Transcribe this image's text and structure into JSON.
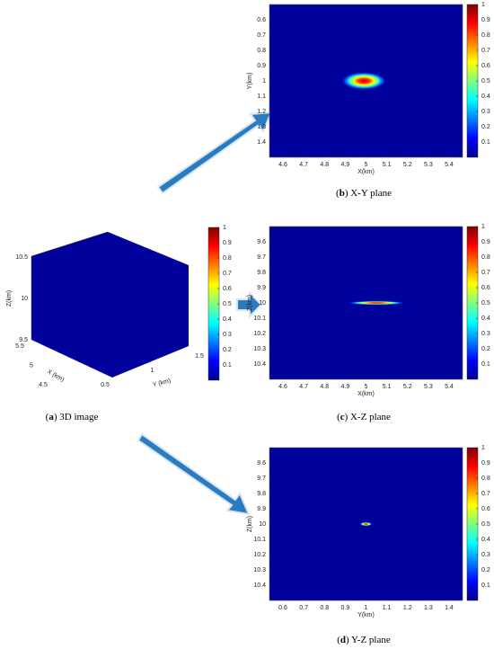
{
  "chart_data": [
    {
      "type": "cube3d",
      "xlabel": "X (km)",
      "ylabel": "Y (km)",
      "zlabel": "Z(km)",
      "xlim": [
        4.5,
        5.5
      ],
      "xticks": [
        4.5,
        5,
        5.5
      ],
      "ylim": [
        0.5,
        1.5
      ],
      "yticks": [
        0.5,
        1,
        1.5
      ],
      "zlim": [
        9.5,
        10.5
      ],
      "zticks": [
        9.5,
        10,
        10.5
      ],
      "color": "#00009a",
      "colormap": "jet",
      "clim": [
        0,
        1
      ],
      "cticks": [
        0.1,
        0.2,
        0.3,
        0.4,
        0.5,
        0.6,
        0.7,
        0.8,
        0.9,
        1
      ],
      "caption": [
        "(",
        "a",
        ") 3D image"
      ]
    },
    {
      "type": "heatmap",
      "xlabel": "X(km)",
      "ylabel": "Y(km)",
      "xlim": [
        4.535,
        5.465
      ],
      "xticks": [
        4.6,
        4.7,
        4.8,
        4.9,
        5,
        5.1,
        5.2,
        5.3,
        5.4
      ],
      "ylim": [
        0.5,
        1.5
      ],
      "yticks": [
        0.6,
        0.7,
        0.8,
        0.9,
        1,
        1.1,
        1.2,
        1.3,
        1.4
      ],
      "y_reversed": true,
      "color": "#00009a",
      "colormap": "jet",
      "clim": [
        0,
        1
      ],
      "cticks": [
        0.1,
        0.2,
        0.3,
        0.4,
        0.5,
        0.6,
        0.7,
        0.8,
        0.9,
        1
      ],
      "peak": {
        "x": 4.99,
        "y": 1.0,
        "value": 1
      },
      "caption": [
        "(",
        "b",
        ") X-Y plane"
      ]
    },
    {
      "type": "heatmap",
      "xlabel": "X(km)",
      "ylabel": "Z(km)",
      "xlim": [
        4.535,
        5.465
      ],
      "xticks": [
        4.6,
        4.7,
        4.8,
        4.9,
        5,
        5.1,
        5.2,
        5.3,
        5.4
      ],
      "ylim": [
        9.5,
        10.5
      ],
      "yticks": [
        9.6,
        9.7,
        9.8,
        9.9,
        10,
        10.1,
        10.2,
        10.3,
        10.4
      ],
      "y_reversed": true,
      "color": "#00009a",
      "colormap": "jet",
      "clim": [
        0,
        1
      ],
      "cticks": [
        0.1,
        0.2,
        0.3,
        0.4,
        0.5,
        0.6,
        0.7,
        0.8,
        0.9,
        1
      ],
      "peak": {
        "x": 5.05,
        "y": 10.0,
        "value": 1
      },
      "caption": [
        "(",
        "c",
        ") X-Z plane"
      ]
    },
    {
      "type": "heatmap",
      "xlabel": "Y(km)",
      "ylabel": "Z(km)",
      "xlim": [
        0.535,
        1.465
      ],
      "xticks": [
        0.6,
        0.7,
        0.8,
        0.9,
        1,
        1.1,
        1.2,
        1.3,
        1.4
      ],
      "ylim": [
        9.5,
        10.5
      ],
      "yticks": [
        9.6,
        9.7,
        9.8,
        9.9,
        10,
        10.1,
        10.2,
        10.3,
        10.4
      ],
      "y_reversed": true,
      "color": "#00009a",
      "colormap": "jet",
      "clim": [
        0,
        1
      ],
      "cticks": [
        0.1,
        0.2,
        0.3,
        0.4,
        0.5,
        0.6,
        0.7,
        0.8,
        0.9,
        1
      ],
      "peak": {
        "x": 1.0,
        "y": 10.0,
        "value": 1
      },
      "caption": [
        "(",
        "d",
        ") Y-Z plane"
      ]
    }
  ]
}
